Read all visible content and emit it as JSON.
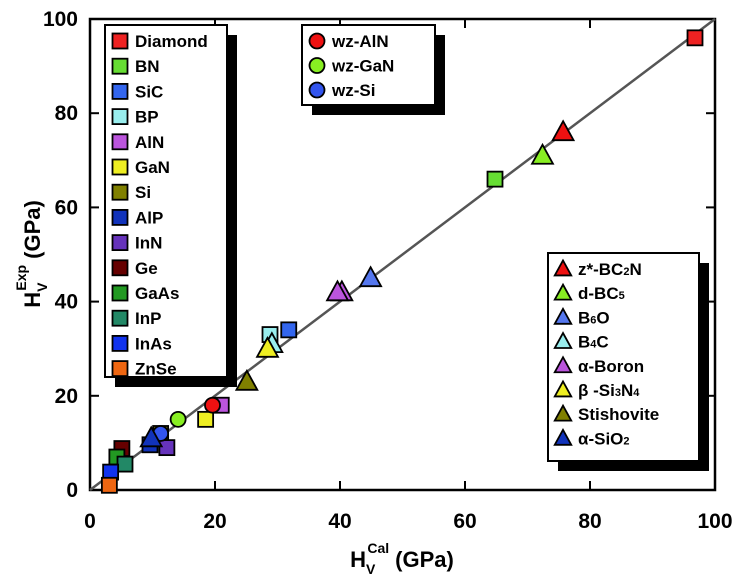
{
  "chart_data": {
    "type": "scatter",
    "title": "",
    "xlabel": {
      "main": "H",
      "sub": "V",
      "sup": "Cal",
      "unit": "(GPa)"
    },
    "ylabel": {
      "main": "H",
      "sub": "V",
      "sup": "Exp",
      "unit": "(GPa)"
    },
    "xlim": [
      0,
      100
    ],
    "ylim": [
      0,
      100
    ],
    "xticks": [
      "0",
      "20",
      "40",
      "60",
      "80",
      "100"
    ],
    "yticks": [
      "0",
      "20",
      "40",
      "60",
      "80",
      "100"
    ],
    "xtick_values": [
      0,
      20,
      40,
      60,
      80,
      100
    ],
    "ytick_values": [
      0,
      20,
      40,
      60,
      80,
      100
    ],
    "reference_line": {
      "label": "y = x",
      "from": [
        0,
        0
      ],
      "to": [
        100,
        100
      ],
      "color": "#555555"
    },
    "legends": [
      {
        "id": "cubic",
        "placement": "top-left",
        "marker": "square",
        "entries": [
          "Diamond",
          "BN",
          "SiC",
          "BP",
          "AlN",
          "GaN",
          "Si",
          "AlP",
          "InN",
          "Ge",
          "GaAs",
          "InP",
          "InAs",
          "ZnSe"
        ]
      },
      {
        "id": "wurtzite",
        "placement": "top-center",
        "marker": "circle",
        "entries": [
          "wz-AlN",
          "wz-GaN",
          "wz-Si"
        ]
      },
      {
        "id": "complex",
        "placement": "bottom-right",
        "marker": "triangle",
        "entries": [
          {
            "parts": [
              [
                "z*-BC",
                ""
              ],
              [
                "2",
                "sub"
              ],
              [
                "N",
                ""
              ]
            ]
          },
          {
            "parts": [
              [
                "d-BC",
                ""
              ],
              [
                "5",
                "sub"
              ]
            ]
          },
          {
            "parts": [
              [
                "B",
                ""
              ],
              [
                "6",
                "sub"
              ],
              [
                "O",
                ""
              ]
            ]
          },
          {
            "parts": [
              [
                "B",
                ""
              ],
              [
                "4",
                "sub"
              ],
              [
                "C",
                ""
              ]
            ]
          },
          {
            "parts": [
              [
                "α-Boron",
                ""
              ]
            ]
          },
          {
            "parts": [
              [
                "β -Si",
                ""
              ],
              [
                "3",
                "sub"
              ],
              [
                "N",
                ""
              ],
              [
                "4",
                "sub"
              ]
            ]
          },
          {
            "parts": [
              [
                "Stishovite",
                ""
              ]
            ]
          },
          {
            "parts": [
              [
                "α-SiO",
                ""
              ],
              [
                "2",
                "sub"
              ]
            ]
          }
        ]
      }
    ],
    "series": [
      {
        "name": "Diamond",
        "marker": "square",
        "color": "#ee2222",
        "points": [
          [
            96.8,
            96.0
          ]
        ]
      },
      {
        "name": "BN",
        "marker": "square",
        "color": "#66dd33",
        "points": [
          [
            64.8,
            66.0
          ]
        ]
      },
      {
        "name": "SiC",
        "marker": "square",
        "color": "#3366ee",
        "points": [
          [
            31.8,
            34.0
          ]
        ]
      },
      {
        "name": "BP",
        "marker": "square",
        "color": "#99eeee",
        "points": [
          [
            28.8,
            33.0
          ]
        ]
      },
      {
        "name": "AlN",
        "marker": "square",
        "color": "#bb55dd",
        "points": [
          [
            21.0,
            18.0
          ]
        ]
      },
      {
        "name": "GaN",
        "marker": "square",
        "color": "#eeee22",
        "points": [
          [
            18.5,
            15.0
          ]
        ]
      },
      {
        "name": "Si",
        "marker": "square",
        "color": "#808000",
        "points": [
          [
            11.3,
            12.0
          ]
        ]
      },
      {
        "name": "AlP",
        "marker": "square",
        "color": "#1133bb",
        "points": [
          [
            9.6,
            9.6
          ]
        ]
      },
      {
        "name": "InN",
        "marker": "square",
        "color": "#6633bb",
        "points": [
          [
            12.3,
            9.0
          ]
        ]
      },
      {
        "name": "Ge",
        "marker": "square",
        "color": "#660000",
        "points": [
          [
            5.1,
            8.8
          ]
        ]
      },
      {
        "name": "GaAs",
        "marker": "square",
        "color": "#229922",
        "points": [
          [
            4.3,
            7.0
          ]
        ]
      },
      {
        "name": "InP",
        "marker": "square",
        "color": "#228866",
        "points": [
          [
            5.6,
            5.5
          ]
        ]
      },
      {
        "name": "InAs",
        "marker": "square",
        "color": "#1133ee",
        "points": [
          [
            3.3,
            3.8
          ]
        ]
      },
      {
        "name": "ZnSe",
        "marker": "square",
        "color": "#ee6611",
        "points": [
          [
            3.1,
            1.0
          ]
        ]
      },
      {
        "name": "wz-AlN",
        "marker": "circle",
        "color": "#ee1111",
        "points": [
          [
            19.6,
            18.0
          ]
        ]
      },
      {
        "name": "wz-GaN",
        "marker": "circle",
        "color": "#88ee22",
        "points": [
          [
            14.1,
            15.0
          ]
        ]
      },
      {
        "name": "wz-Si",
        "marker": "circle",
        "color": "#3355ee",
        "points": [
          [
            11.3,
            12.0
          ]
        ]
      },
      {
        "name": "z*-BC2N",
        "marker": "triangle",
        "color": "#ee1111",
        "points": [
          [
            75.7,
            76.0
          ]
        ]
      },
      {
        "name": "d-BC5",
        "marker": "triangle",
        "color": "#88ee22",
        "points": [
          [
            72.4,
            71.0
          ]
        ]
      },
      {
        "name": "B6O",
        "marker": "triangle",
        "color": "#5577ee",
        "points": [
          [
            44.9,
            45.0
          ]
        ]
      },
      {
        "name": "B4C",
        "marker": "triangle",
        "color": "#99eeee",
        "points": [
          [
            29.1,
            31.0
          ]
        ]
      },
      {
        "name": "α-Boron",
        "marker": "triangle",
        "color": "#bb55dd",
        "points": [
          [
            40.3,
            42.0
          ],
          [
            39.6,
            42.0
          ]
        ]
      },
      {
        "name": "β-Si3N4",
        "marker": "triangle",
        "color": "#eeee22",
        "points": [
          [
            28.4,
            30.0
          ]
        ]
      },
      {
        "name": "Stishovite",
        "marker": "triangle",
        "color": "#808000",
        "points": [
          [
            25.1,
            23.0
          ]
        ]
      },
      {
        "name": "α-SiO2",
        "marker": "triangle",
        "color": "#1133bb",
        "points": [
          [
            9.8,
            11.0
          ]
        ]
      }
    ]
  }
}
